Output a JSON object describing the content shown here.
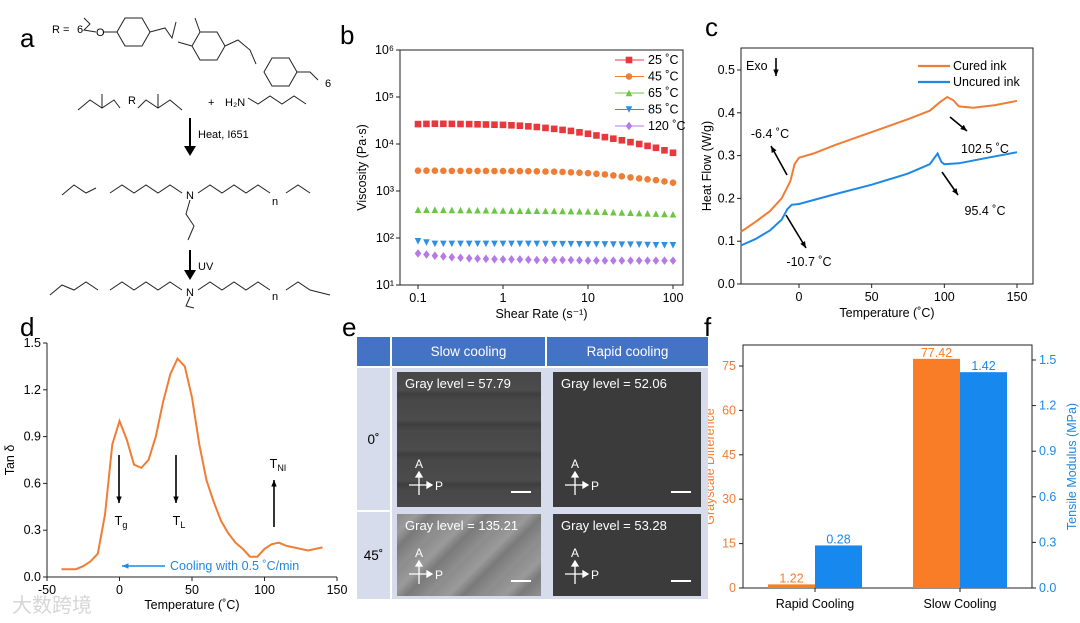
{
  "panel_letters": {
    "a": "a",
    "b": "b",
    "c": "c",
    "d": "d",
    "e": "e",
    "f": "f"
  },
  "scheme": {
    "r_label": "R =",
    "chain_n1": "6",
    "chain_n2": "6",
    "oxygen": "O",
    "r": "R",
    "plus": "+",
    "amine": "H₂N",
    "nitrogen": "N",
    "n": "n",
    "step1": "Heat, I651",
    "step2": "UV"
  },
  "watermark": "大数跨境",
  "chart_data": [
    {
      "id": "b",
      "type": "scatter",
      "xscale": "log",
      "yscale": "log",
      "xlabel": "Shear Rate (s⁻¹)",
      "ylabel": "Viscosity (Pa·s)",
      "xlim": [
        0.06,
        150
      ],
      "ylim": [
        10,
        1000000
      ],
      "xticks": [
        {
          "v": 0.1,
          "l": "0.1"
        },
        {
          "v": 1,
          "l": "1"
        },
        {
          "v": 10,
          "l": "10"
        },
        {
          "v": 100,
          "l": "100"
        }
      ],
      "yticks": [
        {
          "v": 10,
          "l": "10¹"
        },
        {
          "v": 100,
          "l": "10²"
        },
        {
          "v": 1000,
          "l": "10³"
        },
        {
          "v": 10000,
          "l": "10⁴"
        },
        {
          "v": 100000,
          "l": "10⁵"
        },
        {
          "v": 1000000,
          "l": "10⁶"
        }
      ],
      "legend": "top-right",
      "x": [
        0.1,
        0.158,
        0.25,
        0.4,
        0.63,
        1,
        1.58,
        2.5,
        4,
        6.3,
        10,
        15.8,
        25,
        40,
        63,
        100
      ],
      "series": [
        {
          "name": "25 ˚C",
          "color": "#e8383d",
          "marker": "square",
          "values": [
            26500,
            27000,
            26800,
            26500,
            26000,
            25500,
            24500,
            23000,
            21000,
            19000,
            16500,
            14000,
            12000,
            10000,
            8300,
            6500
          ]
        },
        {
          "name": "45 ˚C",
          "color": "#f07d35",
          "marker": "circle",
          "values": [
            2700,
            2700,
            2680,
            2680,
            2670,
            2660,
            2650,
            2620,
            2580,
            2500,
            2400,
            2250,
            2050,
            1850,
            1700,
            1500
          ]
        },
        {
          "name": "65 ˚C",
          "color": "#6cc644",
          "marker": "triangle-up",
          "values": [
            400,
            400,
            395,
            392,
            390,
            385,
            382,
            380,
            378,
            375,
            370,
            360,
            350,
            340,
            330,
            320
          ]
        },
        {
          "name": "85 ˚C",
          "color": "#2f8fe0",
          "marker": "triangle-down",
          "values": [
            85,
            75,
            75,
            75,
            75,
            75,
            75,
            75,
            74,
            74,
            73,
            73,
            72,
            72,
            70,
            70
          ]
        },
        {
          "name": "120 ˚C",
          "color": "#b57ae8",
          "marker": "diamond",
          "values": [
            47,
            42,
            39,
            37,
            36,
            35,
            35,
            34,
            34,
            34,
            33,
            33,
            33,
            33,
            33,
            33
          ]
        }
      ]
    },
    {
      "id": "c",
      "type": "line",
      "xlabel": "Temperature (˚C)",
      "ylabel": "Heat Flow (W/g)",
      "xlim": [
        -40,
        160
      ],
      "ylim": [
        0,
        0.55
      ],
      "xticks": [
        {
          "v": 0,
          "l": "0"
        },
        {
          "v": 50,
          "l": "50"
        },
        {
          "v": 100,
          "l": "100"
        },
        {
          "v": 150,
          "l": "150"
        }
      ],
      "yticks": [
        {
          "v": 0,
          "l": "0.0"
        },
        {
          "v": 0.1,
          "l": "0.1"
        },
        {
          "v": 0.2,
          "l": "0.2"
        },
        {
          "v": 0.3,
          "l": "0.3"
        },
        {
          "v": 0.4,
          "l": "0.4"
        },
        {
          "v": 0.5,
          "l": "0.5"
        }
      ],
      "legend": "top-right",
      "series": [
        {
          "name": "Cured ink",
          "color": "#f07d35",
          "x": [
            -40,
            -30,
            -20,
            -12,
            -6,
            -3,
            0,
            10,
            25,
            50,
            75,
            90,
            97,
            102,
            106,
            110,
            120,
            135,
            150
          ],
          "y": [
            0.122,
            0.145,
            0.17,
            0.2,
            0.24,
            0.28,
            0.295,
            0.305,
            0.325,
            0.355,
            0.385,
            0.405,
            0.425,
            0.437,
            0.43,
            0.415,
            0.412,
            0.418,
            0.428
          ]
        },
        {
          "name": "Uncured ink",
          "color": "#1e88e5",
          "x": [
            -40,
            -30,
            -20,
            -12,
            -8,
            -5,
            0,
            25,
            50,
            75,
            90,
            95.4,
            98,
            100,
            110,
            130,
            150
          ],
          "y": [
            0.09,
            0.105,
            0.125,
            0.15,
            0.175,
            0.185,
            0.187,
            0.21,
            0.232,
            0.258,
            0.28,
            0.305,
            0.285,
            0.28,
            0.282,
            0.295,
            0.308
          ]
        }
      ],
      "annotations": {
        "exo": "Exo",
        "a1": "-6.4 ˚C",
        "a2": "102.5 ˚C",
        "a3": "95.4 ˚C",
        "a4": "-10.7 ˚C"
      }
    },
    {
      "id": "d",
      "type": "line",
      "xlabel": "Temperature (˚C)",
      "ylabel": "Tan δ",
      "xlim": [
        -50,
        150
      ],
      "ylim": [
        0,
        1.5
      ],
      "xticks": [
        {
          "v": -50,
          "l": "-50"
        },
        {
          "v": 0,
          "l": "0"
        },
        {
          "v": 50,
          "l": "50"
        },
        {
          "v": 100,
          "l": "100"
        },
        {
          "v": 150,
          "l": "150"
        }
      ],
      "yticks": [
        {
          "v": 0,
          "l": "0.0"
        },
        {
          "v": 0.3,
          "l": "0.3"
        },
        {
          "v": 0.6,
          "l": "0.6"
        },
        {
          "v": 0.9,
          "l": "0.9"
        },
        {
          "v": 1.2,
          "l": "1.2"
        },
        {
          "v": 1.5,
          "l": "1.5"
        }
      ],
      "series": [
        {
          "name": "Tan δ",
          "color": "#f07d35",
          "x": [
            -40,
            -30,
            -25,
            -20,
            -15,
            -10,
            -5,
            0,
            5,
            10,
            15,
            20,
            25,
            30,
            35,
            40,
            45,
            50,
            55,
            60,
            65,
            70,
            75,
            80,
            85,
            90,
            95,
            100,
            105,
            110,
            115,
            120,
            130,
            140
          ],
          "y": [
            0.05,
            0.05,
            0.07,
            0.1,
            0.15,
            0.4,
            0.85,
            1.0,
            0.88,
            0.72,
            0.7,
            0.75,
            0.9,
            1.12,
            1.3,
            1.4,
            1.35,
            1.15,
            0.85,
            0.62,
            0.48,
            0.36,
            0.28,
            0.22,
            0.18,
            0.13,
            0.13,
            0.18,
            0.21,
            0.22,
            0.2,
            0.19,
            0.17,
            0.19
          ]
        }
      ],
      "annotations": {
        "tg": "T",
        "tg_sub": "g",
        "tl": "T",
        "tl_sub": "L",
        "tni": "T",
        "tni_sub": "NI",
        "cooling": "Cooling with 0.5 ˚C/min"
      }
    },
    {
      "id": "f",
      "type": "bar",
      "categories": [
        "Rapid Cooling",
        "Slow Cooling"
      ],
      "ylabel": "Grayscale Difference",
      "ylabel_right": "Tensile Modulus (MPa)",
      "ylim": [
        0,
        82
      ],
      "ylim_right": [
        0,
        1.6
      ],
      "yticks": [
        {
          "v": 0,
          "l": "0"
        },
        {
          "v": 15,
          "l": "15"
        },
        {
          "v": 30,
          "l": "30"
        },
        {
          "v": 45,
          "l": "45"
        },
        {
          "v": 60,
          "l": "60"
        },
        {
          "v": 75,
          "l": "75"
        }
      ],
      "yticks_right": [
        {
          "v": 0,
          "l": "0.0"
        },
        {
          "v": 0.3,
          "l": "0.3"
        },
        {
          "v": 0.6,
          "l": "0.6"
        },
        {
          "v": 0.9,
          "l": "0.9"
        },
        {
          "v": 1.2,
          "l": "1.2"
        },
        {
          "v": 1.5,
          "l": "1.5"
        }
      ],
      "series": [
        {
          "name": "Grayscale Difference",
          "axis": "left",
          "color": "#f87d26",
          "values": [
            1.22,
            77.42
          ],
          "labels": [
            "1.22",
            "77.42"
          ]
        },
        {
          "name": "Tensile Modulus",
          "axis": "right",
          "color": "#1788ee",
          "values": [
            0.28,
            1.42
          ],
          "labels": [
            "0.28",
            "1.42"
          ]
        }
      ]
    }
  ],
  "panel_e": {
    "headers": [
      "Slow cooling",
      "Rapid cooling"
    ],
    "rows": [
      {
        "angle": "0˚",
        "cells": [
          "Gray level = 57.79",
          "Gray level = 52.06"
        ]
      },
      {
        "angle": "45˚",
        "cells": [
          "Gray level = 135.21",
          "Gray level = 53.28"
        ]
      }
    ],
    "analyzer": "A",
    "polarizer": "P"
  }
}
